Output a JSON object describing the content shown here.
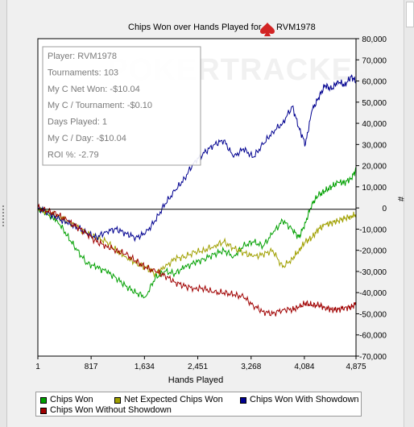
{
  "chart_data": {
    "type": "line",
    "title": "Chips Won over Hands Played for",
    "player_name": "RVM1978",
    "xlabel": "Hands Played",
    "ylabel": "#",
    "xlim": [
      1,
      4875
    ],
    "ylim": [
      -70000,
      80000
    ],
    "x_ticks": [
      "1",
      "817",
      "1,634",
      "2,451",
      "3,268",
      "4,084",
      "4,875"
    ],
    "x_tick_values": [
      1,
      817,
      1634,
      2451,
      3268,
      4084,
      4875
    ],
    "y_ticks": [
      "80,000",
      "70,000",
      "60,000",
      "50,000",
      "40,000",
      "30,000",
      "20,000",
      "10,000",
      "0",
      "-10,000",
      "-20,000",
      "-30,000",
      "-40,000",
      "-50,000",
      "-60,000",
      "-70,000"
    ],
    "y_tick_values": [
      80000,
      70000,
      60000,
      50000,
      40000,
      30000,
      20000,
      10000,
      0,
      -10000,
      -20000,
      -30000,
      -40000,
      -50000,
      -60000,
      -70000
    ],
    "watermark": "POKERTRACKER",
    "stats": [
      "Player: RVM1978",
      "Tournaments: 103",
      "My C Net Won: -$10.04",
      "My C / Tournament: -$0.10",
      "Days Played: 1",
      "My C / Day: -$10.04",
      "ROI %: -2.79"
    ],
    "series": [
      {
        "name": "Chips Won",
        "color": "#00a000",
        "x": [
          1,
          150,
          300,
          450,
          600,
          750,
          900,
          1050,
          1200,
          1350,
          1500,
          1650,
          1800,
          1950,
          2100,
          2250,
          2400,
          2550,
          2700,
          2850,
          3000,
          3150,
          3300,
          3450,
          3600,
          3750,
          3900,
          4000,
          4100,
          4200,
          4300,
          4400,
          4500,
          4600,
          4700,
          4800,
          4875
        ],
        "y": [
          0,
          -3000,
          -6000,
          -13000,
          -20000,
          -26000,
          -28000,
          -30000,
          -33000,
          -37000,
          -40000,
          -42000,
          -33000,
          -30000,
          -31000,
          -28000,
          -26000,
          -24000,
          -22000,
          -20000,
          -23000,
          -18000,
          -16000,
          -18000,
          -12000,
          -6000,
          -10000,
          -14000,
          -7000,
          2000,
          6000,
          8000,
          10000,
          12000,
          12000,
          14000,
          18000
        ]
      },
      {
        "name": "Net Expected Chips Won",
        "color": "#a0a000",
        "x": [
          1,
          150,
          300,
          450,
          600,
          750,
          900,
          1050,
          1200,
          1350,
          1500,
          1650,
          1800,
          1950,
          2100,
          2250,
          2400,
          2550,
          2700,
          2850,
          3000,
          3150,
          3300,
          3450,
          3600,
          3750,
          3900,
          4000,
          4100,
          4200,
          4300,
          4400,
          4500,
          4600,
          4700,
          4800,
          4875
        ],
        "y": [
          0,
          -2000,
          -4000,
          -6000,
          -9000,
          -12000,
          -14000,
          -16000,
          -20000,
          -23000,
          -26000,
          -28000,
          -31000,
          -28000,
          -24000,
          -23000,
          -21000,
          -20000,
          -18000,
          -16000,
          -19000,
          -21000,
          -23000,
          -22000,
          -20000,
          -28000,
          -24000,
          -20000,
          -16000,
          -14000,
          -10000,
          -8000,
          -7000,
          -6000,
          -5000,
          -4000,
          -3000
        ]
      },
      {
        "name": "Chips Won With Showdown",
        "color": "#000090",
        "x": [
          1,
          150,
          300,
          450,
          600,
          750,
          900,
          1050,
          1200,
          1350,
          1500,
          1650,
          1800,
          1950,
          2100,
          2250,
          2400,
          2550,
          2700,
          2850,
          3000,
          3150,
          3300,
          3450,
          3600,
          3750,
          3900,
          4000,
          4100,
          4200,
          4300,
          4400,
          4500,
          4600,
          4700,
          4800,
          4875
        ],
        "y": [
          0,
          -2000,
          -5000,
          -7000,
          -9000,
          -12000,
          -14000,
          -11000,
          -10000,
          -12000,
          -14000,
          -12000,
          -6000,
          2000,
          8000,
          14000,
          22000,
          26000,
          30000,
          32000,
          24000,
          28000,
          24000,
          30000,
          36000,
          40000,
          48000,
          38000,
          30000,
          46000,
          52000,
          58000,
          56000,
          60000,
          58000,
          62000,
          60000
        ]
      },
      {
        "name": "Chips Won Without Showdown",
        "color": "#a00000",
        "x": [
          1,
          150,
          300,
          450,
          600,
          750,
          900,
          1050,
          1200,
          1350,
          1500,
          1650,
          1800,
          1950,
          2100,
          2250,
          2400,
          2550,
          2700,
          2850,
          3000,
          3150,
          3300,
          3450,
          3600,
          3750,
          3900,
          4000,
          4100,
          4200,
          4300,
          4400,
          4500,
          4600,
          4700,
          4800,
          4875
        ],
        "y": [
          0,
          -1500,
          -3000,
          -6000,
          -9000,
          -12000,
          -16000,
          -18000,
          -20000,
          -22000,
          -25000,
          -28000,
          -30000,
          -32000,
          -35000,
          -37000,
          -38000,
          -38000,
          -40000,
          -40000,
          -41000,
          -42000,
          -46000,
          -49000,
          -50000,
          -48000,
          -48000,
          -47000,
          -45000,
          -46000,
          -46000,
          -47000,
          -48000,
          -48000,
          -47000,
          -47000,
          -45000
        ]
      }
    ]
  }
}
